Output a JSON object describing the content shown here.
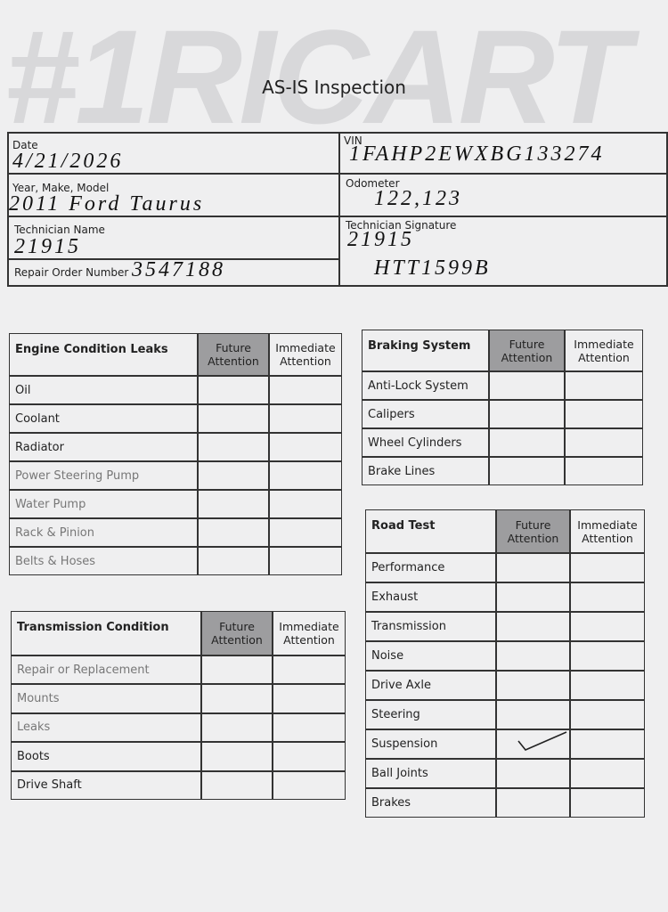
{
  "header": {
    "watermark": "#1RICART",
    "title": "AS-IS Inspection"
  },
  "fields": [
    {
      "label": "Date",
      "value": "4/21/2026"
    },
    {
      "label": "Year, Make, Model",
      "value": "2011 Ford Taurus"
    },
    {
      "label": "Technician Name",
      "value": "21915"
    },
    {
      "label": "Repair Order Number",
      "value": "3547188"
    },
    {
      "label": "VIN",
      "value": "1FAHP2EWXBG133274"
    },
    {
      "label": "Odometer",
      "value": "122,123"
    },
    {
      "label": "Technician Signature",
      "value": "21915"
    }
  ],
  "plate": "HTT1599B",
  "tables": [
    {
      "title": "Engine Condition Leaks",
      "columns": [
        "Future Attention",
        "Immediate Attention"
      ],
      "rows": [
        "Oil",
        "Coolant",
        "Radiator",
        "Power Steering Pump",
        "Water Pump",
        "Rack & Pinion",
        "Belts & Hoses"
      ]
    },
    {
      "title": "Braking System",
      "columns": [
        "Future Attention",
        "Immediate Attention"
      ],
      "rows": [
        "Anti-Lock System",
        "Calipers",
        "Wheel Cylinders",
        "Brake Lines"
      ]
    },
    {
      "title": "Transmission Condition",
      "columns": [
        "Future Attention",
        "Immediate Attention"
      ],
      "rows": [
        "Repair or Replacement",
        "Mounts",
        "Leaks",
        "Boots",
        "Drive Shaft"
      ]
    },
    {
      "title": "Road Test",
      "columns": [
        "Future Attention",
        "Immediate Attention"
      ],
      "rows": [
        "Performance",
        "Exhaust",
        "Transmission",
        "Noise",
        "Drive Axle",
        "Steering",
        "Suspension",
        "Ball Joints",
        "Brakes"
      ]
    }
  ]
}
